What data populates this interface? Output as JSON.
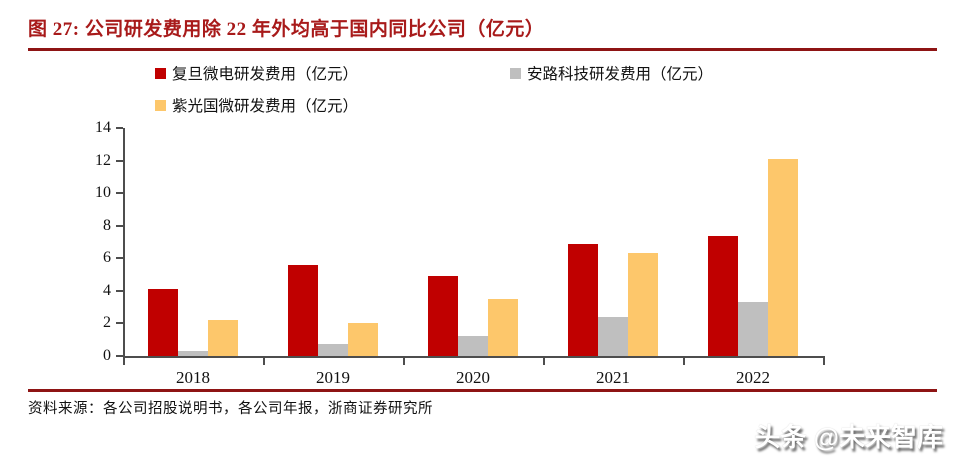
{
  "header": {
    "title": "图 27: 公司研发费用除 22 年外均高于国内同比公司（亿元）"
  },
  "footer": {
    "source": "资料来源：各公司招股说明书，各公司年报，浙商证券研究所",
    "watermark": "头条 @未来智库"
  },
  "colors": {
    "title_red": "#A81A1A",
    "rule_red": "#8E1414",
    "axis": "#4D4D4D",
    "text": "#111111"
  },
  "chart_data": {
    "type": "bar",
    "title": "",
    "xlabel": "",
    "ylabel": "",
    "categories": [
      "2018",
      "2019",
      "2020",
      "2021",
      "2022"
    ],
    "series": [
      {
        "key": "fudan-micro",
        "name": "复旦微电研发费用（亿元）",
        "color": "#C00000",
        "values": [
          4.1,
          5.6,
          4.9,
          6.9,
          7.35
        ]
      },
      {
        "key": "anlogic",
        "name": "安路科技研发费用（亿元）",
        "color": "#BFBFBF",
        "values": [
          0.3,
          0.75,
          1.25,
          2.4,
          3.3
        ]
      },
      {
        "key": "unigroup-guowei",
        "name": "紫光国微研发费用（亿元）",
        "color": "#FDC76B",
        "values": [
          2.2,
          2.0,
          3.5,
          6.3,
          12.1
        ]
      }
    ],
    "ylim": [
      0,
      14
    ],
    "yticks": [
      0,
      2,
      4,
      6,
      8,
      10,
      12,
      14
    ],
    "grid": false,
    "legend_position": "top-left, two rows"
  }
}
